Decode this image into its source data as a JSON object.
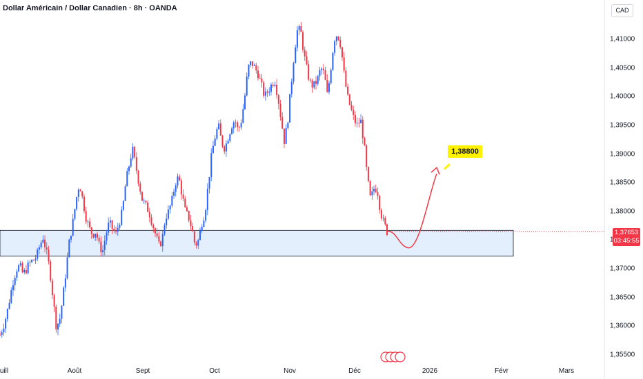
{
  "header": {
    "title": "Dollar Américain / Dollar Canadien · 8h · OANDA",
    "currency_button": "CAD"
  },
  "last_price": {
    "value": "1,37653",
    "countdown": "03:45:55",
    "color": "#f23645"
  },
  "annotation": {
    "target_label": "1,38800",
    "arrow_color": "#f23645",
    "label_bg": "#fff200"
  },
  "colors": {
    "up": "#2962ff",
    "down": "#f23645",
    "zone_fill": "#e3effd",
    "zone_border": "#131722"
  },
  "chart_data": {
    "type": "candlestick",
    "title": "Dollar Américain / Dollar Canadien · 8h · OANDA",
    "y_axis": {
      "unit": "CAD",
      "ticks": [
        "1,41000",
        "1,40500",
        "1,40000",
        "1,39500",
        "1,39000",
        "1,38500",
        "1,38000",
        "1,37500",
        "1,37000",
        "1,36500",
        "1,36000",
        "1,35500"
      ],
      "tick_values": [
        1.41,
        1.405,
        1.4,
        1.395,
        1.39,
        1.385,
        1.38,
        1.375,
        1.37,
        1.365,
        1.36,
        1.355
      ],
      "range": [
        1.3542,
        1.4187
      ]
    },
    "x_axis": {
      "ticks": [
        "uill",
        "Août",
        "Sept",
        "Oct",
        "Nov",
        "Déc",
        "2026",
        "Févr",
        "Mars"
      ]
    },
    "zone": {
      "from": 1.3722,
      "to": 1.3767
    },
    "target": 1.388,
    "last": 1.37653,
    "path": [
      1.3585,
      1.36,
      1.362,
      1.365,
      1.368,
      1.37,
      1.3705,
      1.369,
      1.37,
      1.371,
      1.3715,
      1.372,
      1.374,
      1.3755,
      1.373,
      1.37,
      1.365,
      1.36,
      1.361,
      1.365,
      1.37,
      1.375,
      1.378,
      1.382,
      1.385,
      1.382,
      1.379,
      1.377,
      1.376,
      1.3765,
      1.374,
      1.373,
      1.376,
      1.378,
      1.377,
      1.376,
      1.378,
      1.38,
      1.385,
      1.388,
      1.391,
      1.388,
      1.385,
      1.382,
      1.381,
      1.38,
      1.378,
      1.376,
      1.374,
      1.375,
      1.379,
      1.38,
      1.382,
      1.385,
      1.386,
      1.383,
      1.38,
      1.379,
      1.377,
      1.374,
      1.375,
      1.378,
      1.38,
      1.385,
      1.39,
      1.393,
      1.395,
      1.392,
      1.391,
      1.393,
      1.395,
      1.396,
      1.394,
      1.396,
      1.4,
      1.405,
      1.406,
      1.405,
      1.404,
      1.402,
      1.4,
      1.401,
      1.402,
      1.403,
      1.4,
      1.396,
      1.392,
      1.396,
      1.402,
      1.408,
      1.412,
      1.411,
      1.407,
      1.404,
      1.402,
      1.402,
      1.403,
      1.405,
      1.404,
      1.4,
      1.405,
      1.41,
      1.411,
      1.409,
      1.404,
      1.4,
      1.398,
      1.396,
      1.395,
      1.396,
      1.392,
      1.386,
      1.382,
      1.384,
      1.384,
      1.38,
      1.378,
      1.3765
    ]
  }
}
